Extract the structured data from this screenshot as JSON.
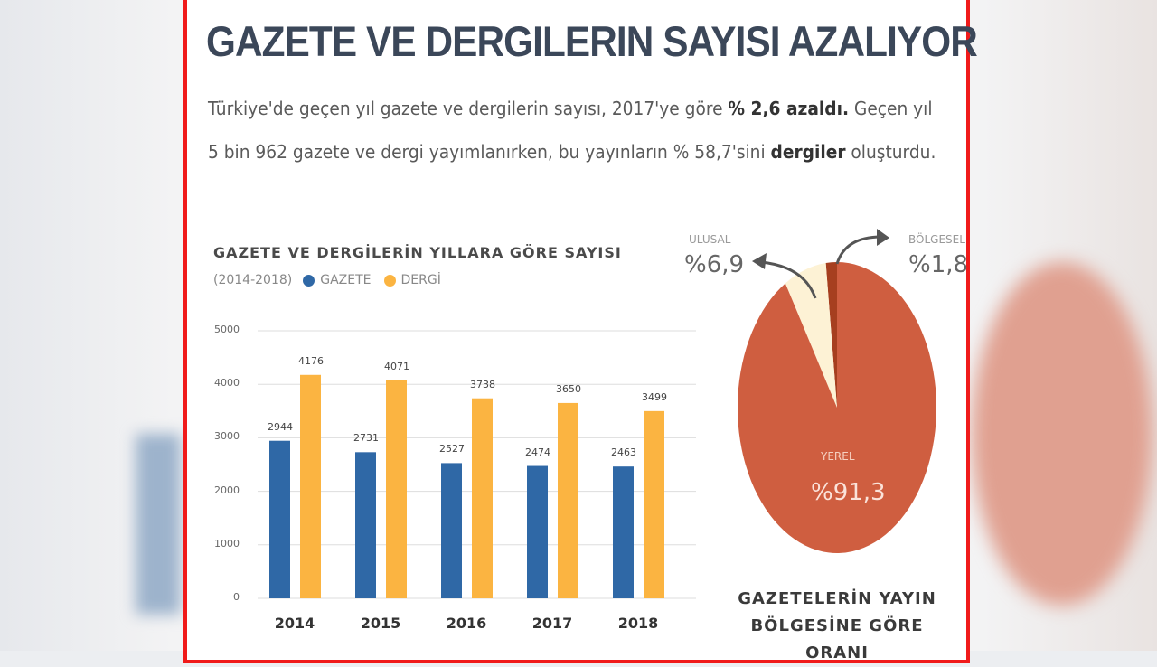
{
  "headline": "GAZETE VE DERGILERIN SAYISI AZALIYOR",
  "subtitle": {
    "line1_a": "Türkiye'de geçen yıl gazete ve dergilerin sayısı, 2017'ye göre ",
    "line1_b": "% 2,6 azaldı.",
    "line1_c": " Geçen yıl",
    "line2_a": "5 bin 962 gazete ve dergi yayımlanırken, bu yayınların % 58,7'sini ",
    "line2_b": "dergiler",
    "line2_c": " oluşturdu."
  },
  "colors": {
    "gazete": "#2f68a6",
    "dergi": "#fbb441",
    "yerel": "#cf5e40",
    "ulusal": "#fdf2d5",
    "bolgesel": "#a63f1f",
    "frame": "#f01a1a"
  },
  "chart_data": [
    {
      "type": "bar",
      "title": "GAZETE VE DERGİLERİN YILLARA GÖRE SAYISI",
      "subtitle": "(2014-2018)",
      "categories": [
        "2014",
        "2015",
        "2016",
        "2017",
        "2018"
      ],
      "series": [
        {
          "name": "GAZETE",
          "values": [
            2944,
            2731,
            2527,
            2474,
            2463
          ]
        },
        {
          "name": "DERGİ",
          "values": [
            4176,
            4071,
            3738,
            3650,
            3499
          ]
        }
      ],
      "yticks": [
        "0",
        "1000",
        "2000",
        "3000",
        "4000",
        "5000"
      ],
      "ylim": [
        0,
        5000
      ],
      "grid": true,
      "legend": "top-left"
    },
    {
      "type": "pie",
      "title": "GAZETELERİN YAYIN BÖLGESİNE GÖRE ORANI",
      "slices": [
        {
          "label": "BÖLGESEL",
          "value": 1.8,
          "text": "%1,8"
        },
        {
          "label": "ULUSAL",
          "value": 6.9,
          "text": "%6,9"
        },
        {
          "label": "YEREL",
          "value": 91.3,
          "text": "%91,3"
        }
      ]
    }
  ]
}
